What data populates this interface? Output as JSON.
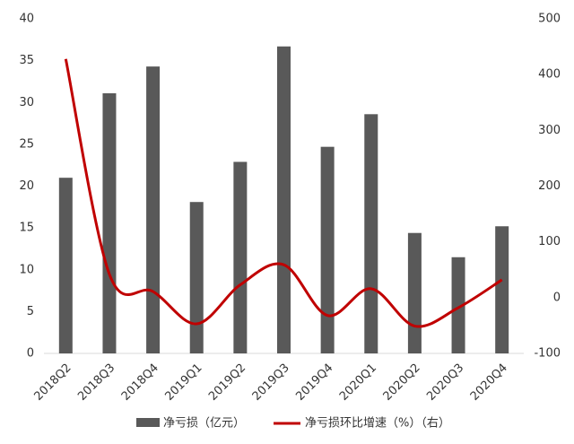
{
  "chart_data": {
    "type": "bar_line",
    "categories": [
      "2018Q2",
      "2018Q3",
      "2018Q4",
      "2019Q1",
      "2019Q2",
      "2019Q3",
      "2019Q4",
      "2020Q1",
      "2020Q2",
      "2020Q3",
      "2020Q4"
    ],
    "series": [
      {
        "name": "净亏损（亿元）",
        "color": "#595959",
        "type": "bar",
        "values": [
          21,
          31.1,
          34.3,
          18.1,
          22.9,
          36.7,
          24.7,
          28.6,
          14.4,
          11.5,
          15.2
        ]
      },
      {
        "name": "净亏损环比增速（%）（右）",
        "color": "#c00000",
        "type": "line",
        "axis": "y2",
        "values": [
          428,
          42,
          11,
          -47,
          23,
          59,
          -32,
          16,
          -51,
          -18,
          32
        ]
      }
    ],
    "ylim": [
      0,
      40
    ],
    "yticks": [
      0,
      5,
      10,
      15,
      20,
      25,
      30,
      35,
      40
    ],
    "y2lim": [
      -100,
      500
    ],
    "y2ticks": [
      -100,
      0,
      100,
      200,
      300,
      400,
      500
    ],
    "legend": "bottom",
    "grid": false
  }
}
